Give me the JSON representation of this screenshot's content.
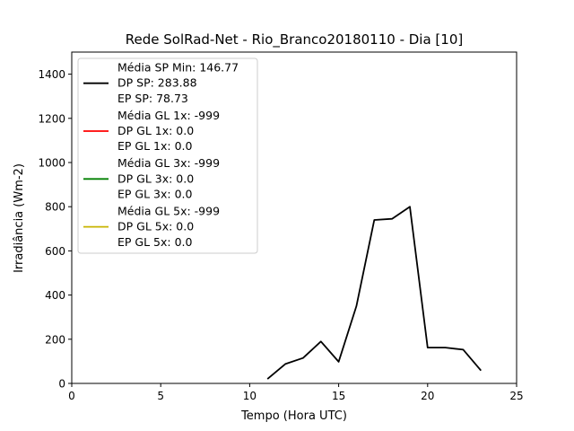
{
  "chart_data": {
    "type": "line",
    "title": "Rede SolRad-Net - Rio_Branco20180110 - Dia [10]",
    "xlabel": "Tempo (Hora UTC)",
    "ylabel": "Irradiância (Wm-2)",
    "xlim": [
      0,
      25
    ],
    "ylim": [
      0,
      1500
    ],
    "xticks": [
      0,
      5,
      10,
      15,
      20,
      25
    ],
    "yticks": [
      0,
      200,
      400,
      600,
      800,
      1000,
      1200,
      1400
    ],
    "grid": false,
    "legend_position": "top-left",
    "series": [
      {
        "color": "#000000",
        "legend": [
          "Média SP Min: 146.77",
          "DP SP: 283.88",
          "EP SP: 78.73"
        ],
        "x": [
          11,
          12,
          13,
          14,
          15,
          16,
          17,
          18,
          19,
          20,
          21,
          22,
          23
        ],
        "y": [
          20,
          88,
          115,
          190,
          98,
          350,
          740,
          745,
          800,
          162,
          162,
          153,
          58
        ]
      },
      {
        "color": "#ff0000",
        "legend": [
          "Média GL 1x: -999",
          "DP GL 1x: 0.0",
          "EP GL 1x: 0.0"
        ],
        "x": [],
        "y": []
      },
      {
        "color": "#008000",
        "legend": [
          "Média GL 3x: -999",
          "DP GL 3x: 0.0",
          "EP GL 3x: 0.0"
        ],
        "x": [],
        "y": []
      },
      {
        "color": "#c8b400",
        "legend": [
          "Média GL 5x: -999",
          "DP GL 5x: 0.0",
          "EP GL 5x: 0.0"
        ],
        "x": [],
        "y": []
      }
    ]
  }
}
